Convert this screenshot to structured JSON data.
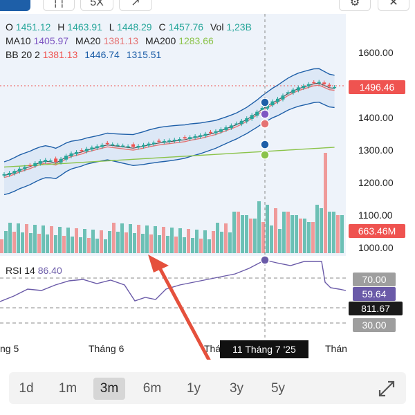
{
  "toolbar": {
    "buttons": [
      {
        "label": "",
        "icon": "chart-type-icon"
      },
      {
        "label": "",
        "icon": "candle-settings-icon"
      },
      {
        "label": "5X",
        "icon": "indicator-icon"
      },
      {
        "label": "",
        "icon": "draw-tool-icon"
      }
    ],
    "right_icons": [
      "gear-icon",
      "close-icon"
    ]
  },
  "ohlc": {
    "o_label": "O",
    "o": "1451.12",
    "h_label": "H",
    "h": "1463.91",
    "l_label": "L",
    "l": "1448.29",
    "c_label": "C",
    "c": "1457.76",
    "vol_label": "Vol",
    "vol": "1,23B"
  },
  "ma": {
    "ma10_label": "MA10",
    "ma10": "1405.97",
    "ma20_label": "MA20",
    "ma20": "1381.13",
    "ma200_label": "MA200",
    "ma200": "1283.66"
  },
  "bb": {
    "label": "BB 20 2",
    "v1": "1381.13",
    "v2": "1446.74",
    "v3": "1315.51"
  },
  "price_axis": [
    "1600.00",
    "1500.00",
    "1400.00",
    "1300.00",
    "1200.00",
    "1100.00",
    "1000.00"
  ],
  "price_badge": "1496.46",
  "volume_badge": "663.46M",
  "rsi": {
    "label": "RSI 14",
    "value": "86.40"
  },
  "rsi_axis": {
    "upper": "70.00",
    "mid": "59.64",
    "value": "811.67",
    "lower": "30.00"
  },
  "x_labels": [
    "ng 5",
    "Tháng 6",
    "Thá",
    "Thán"
  ],
  "crosshair_date": "11 Tháng 7 '25",
  "timeframes": [
    "1d",
    "1m",
    "3m",
    "6m",
    "1y",
    "3y",
    "5y"
  ],
  "active_timeframe": "3m",
  "colors": {
    "up": "#26a69a",
    "down": "#ef5350",
    "ma10": "#7e57c2",
    "ma20": "#e57373",
    "ma200": "#8bc34a",
    "bb": "#1e5fa8",
    "rsi": "#6a5aa8",
    "arrow": "#e5503c"
  }
}
